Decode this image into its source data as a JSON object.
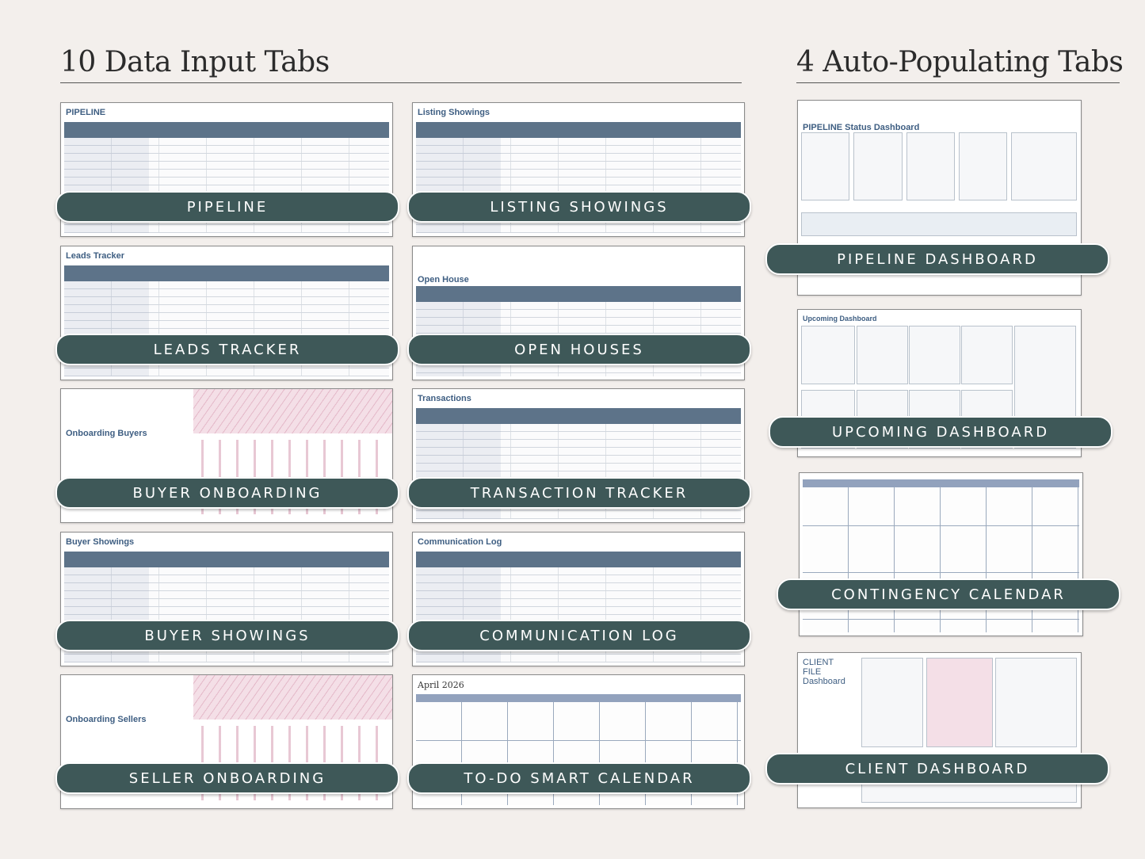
{
  "headings": {
    "left": "10 Data Input Tabs",
    "right": "4 Auto-Populating Tabs"
  },
  "data_input_tabs": [
    {
      "label": "PIPELINE",
      "title": "PIPELINE"
    },
    {
      "label": "LISTING SHOWINGS",
      "title": "Listing Showings"
    },
    {
      "label": "LEADS TRACKER",
      "title": "Leads Tracker"
    },
    {
      "label": "OPEN HOUSES",
      "title": "Open House"
    },
    {
      "label": "BUYER ONBOARDING",
      "title": "Onboarding Buyers"
    },
    {
      "label": "TRANSACTION TRACKER",
      "title": "Transactions"
    },
    {
      "label": "BUYER SHOWINGS",
      "title": "Buyer Showings"
    },
    {
      "label": "COMMUNICATION LOG",
      "title": "Communication Log"
    },
    {
      "label": "SELLER ONBOARDING",
      "title": "Onboarding Sellers"
    },
    {
      "label": "TO-DO SMART CALENDAR",
      "title": "April 2026"
    }
  ],
  "auto_populating_tabs": [
    {
      "label": "PIPELINE DASHBOARD",
      "title": "PIPELINE Status Dashboard"
    },
    {
      "label": "UPCOMING DASHBOARD",
      "title": "Upcoming Dashboard"
    },
    {
      "label": "CONTINGENCY CALENDAR",
      "title": ""
    },
    {
      "label": "CLIENT DASHBOARD",
      "title": "CLIENT FILE Dashboard"
    }
  ],
  "colors": {
    "pill": "#3e5858",
    "background": "#f3efec",
    "table_header": "#5d7389",
    "accent_pink": "#e4b8c8"
  }
}
